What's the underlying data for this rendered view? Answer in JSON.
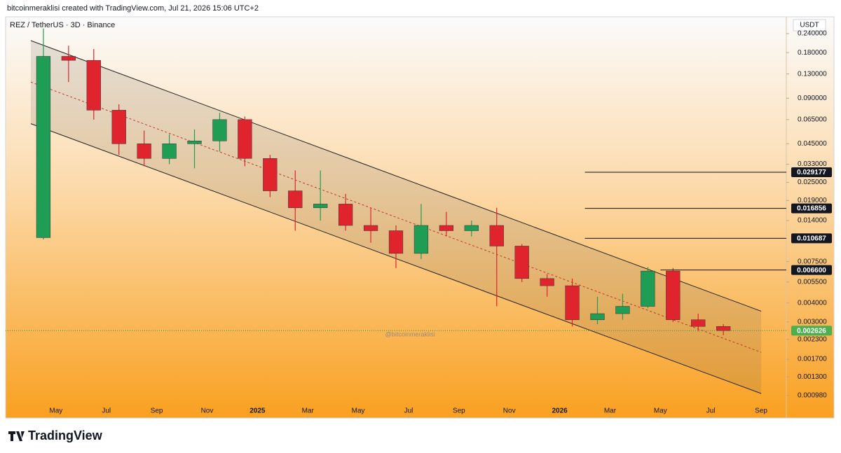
{
  "header": "bitcoinmeraklisi created with TradingView.com, Jul 21, 2026 15:06 UTC+2",
  "footer": {
    "brand": "TradingView"
  },
  "chart_data": {
    "type": "candlestick",
    "title": "REZ / TetherUS · 3D · Binance",
    "currency": "USDT",
    "watermark": "@bitcoinmeraklisi",
    "log_scale": true,
    "grid": false,
    "up_color": "#1f9d55",
    "down_color": "#e0242e",
    "x": [
      "2024-04",
      "2024-05",
      "2024-06",
      "2024-07",
      "2024-08",
      "2024-09",
      "2024-10",
      "2024-11",
      "2024-12",
      "2025-01",
      "2025-02",
      "2025-03",
      "2025-04",
      "2025-05",
      "2025-06",
      "2025-07",
      "2025-08",
      "2025-09",
      "2025-10",
      "2025-11",
      "2025-12",
      "2026-01",
      "2026-02",
      "2026-03",
      "2026-04",
      "2026-05",
      "2026-06",
      "2026-07"
    ],
    "open": [
      0.0108,
      0.17,
      0.16,
      0.075,
      0.045,
      0.036,
      0.045,
      0.047,
      0.065,
      0.036,
      0.022,
      0.017,
      0.018,
      0.013,
      0.012,
      0.0085,
      0.013,
      0.012,
      0.013,
      0.0095,
      0.0058,
      0.0052,
      0.0031,
      0.0034,
      0.0038,
      0.0065,
      0.0031,
      0.0028
    ],
    "high": [
      0.26,
      0.2,
      0.19,
      0.082,
      0.055,
      0.052,
      0.056,
      0.072,
      0.068,
      0.038,
      0.03,
      0.03,
      0.021,
      0.017,
      0.013,
      0.018,
      0.016,
      0.014,
      0.017,
      0.0098,
      0.0062,
      0.0058,
      0.0044,
      0.0046,
      0.0069,
      0.0068,
      0.0034,
      0.0029
    ],
    "low": [
      0.0105,
      0.115,
      0.065,
      0.038,
      0.032,
      0.033,
      0.031,
      0.04,
      0.032,
      0.02,
      0.012,
      0.014,
      0.012,
      0.01,
      0.0068,
      0.0078,
      0.011,
      0.011,
      0.0038,
      0.0055,
      0.0044,
      0.0028,
      0.0029,
      0.0031,
      0.0037,
      0.003,
      0.0026,
      0.00245
    ],
    "close": [
      0.17,
      0.16,
      0.075,
      0.045,
      0.036,
      0.045,
      0.047,
      0.065,
      0.036,
      0.022,
      0.017,
      0.018,
      0.013,
      0.012,
      0.0085,
      0.013,
      0.012,
      0.013,
      0.0095,
      0.0058,
      0.0052,
      0.0031,
      0.0034,
      0.0038,
      0.0065,
      0.0031,
      0.0028,
      0.002626
    ],
    "xlim": [
      "2024-03",
      "2026-10"
    ],
    "xticks": [
      {
        "value": "2024-05",
        "label": "May"
      },
      {
        "value": "2024-07",
        "label": "Jul"
      },
      {
        "value": "2024-09",
        "label": "Sep"
      },
      {
        "value": "2024-11",
        "label": "Nov"
      },
      {
        "value": "2025-01",
        "label": "2025"
      },
      {
        "value": "2025-03",
        "label": "Mar"
      },
      {
        "value": "2025-05",
        "label": "May"
      },
      {
        "value": "2025-07",
        "label": "Jul"
      },
      {
        "value": "2025-09",
        "label": "Sep"
      },
      {
        "value": "2025-11",
        "label": "Nov"
      },
      {
        "value": "2026-01",
        "label": "2026"
      },
      {
        "value": "2026-03",
        "label": "Mar"
      },
      {
        "value": "2026-05",
        "label": "May"
      },
      {
        "value": "2026-07",
        "label": "Jul"
      },
      {
        "value": "2026-09",
        "label": "Sep"
      }
    ],
    "ylim": [
      0.000696,
      0.3036
    ],
    "yticks": [
      {
        "value": 0.24,
        "label": "0.240000"
      },
      {
        "value": 0.18,
        "label": "0.180000"
      },
      {
        "value": 0.13,
        "label": "0.130000"
      },
      {
        "value": 0.09,
        "label": "0.090000"
      },
      {
        "value": 0.065,
        "label": "0.065000"
      },
      {
        "value": 0.045,
        "label": "0.045000"
      },
      {
        "value": 0.033,
        "label": "0.033000"
      },
      {
        "value": 0.025,
        "label": "0.025000"
      },
      {
        "value": 0.019,
        "label": "0.019000"
      },
      {
        "value": 0.014,
        "label": "0.014000"
      },
      {
        "value": 0.0075,
        "label": "0.007500"
      },
      {
        "value": 0.0055,
        "label": "0.005500"
      },
      {
        "value": 0.004,
        "label": "0.004000"
      },
      {
        "value": 0.003,
        "label": "0.003000"
      },
      {
        "value": 0.0023,
        "label": "0.002300"
      },
      {
        "value": 0.0017,
        "label": "0.001700"
      },
      {
        "value": 0.0013,
        "label": "0.001300"
      },
      {
        "value": 0.00098,
        "label": "0.000980"
      }
    ],
    "channel": {
      "start": "2024-04",
      "end": "2026-09",
      "upper": [
        0.216,
        0.00353
      ],
      "middle": [
        0.115,
        0.00189
      ],
      "lower": [
        0.0611,
        0.00101
      ]
    },
    "levels": [
      {
        "value": 0.029177,
        "start": "2026-02"
      },
      {
        "value": 0.016856,
        "start": "2026-02"
      },
      {
        "value": 0.010687,
        "start": "2026-02"
      },
      {
        "value": 0.0066,
        "label": "0.006600",
        "start": "2026-05"
      }
    ]
  }
}
